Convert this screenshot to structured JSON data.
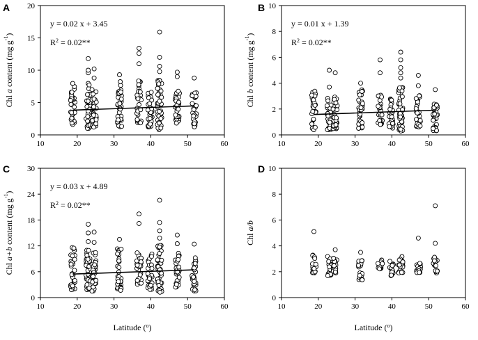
{
  "figure": {
    "x_axis_title": "Latitude (",
    "x_axis_degree": "o",
    "x_axis_close": ")"
  },
  "chart_data": [
    {
      "panel": "A",
      "type": "scatter",
      "ylabel_prefix": "Chl ",
      "ylabel_italic": "a",
      "ylabel_suffix": " content (mg g",
      "ylabel_sup": "-1",
      "ylabel_close": ")",
      "xlim": [
        10,
        60
      ],
      "ylim": [
        0,
        20
      ],
      "xticks": [
        10,
        20,
        30,
        40,
        50,
        60
      ],
      "yticks": [
        0,
        5,
        10,
        15,
        20
      ],
      "equation": "y = 0.02 x + 3.45",
      "r2_prefix": "R",
      "r2_sup": "2",
      "r2_suffix": " = 0.02**",
      "trend": {
        "slope": 0.02,
        "intercept": 3.45
      },
      "columns": [
        {
          "x": 18.8,
          "n": 34,
          "min": 1.2,
          "max": 8.2,
          "outliers": []
        },
        {
          "x": 23.0,
          "n": 44,
          "min": 1.0,
          "max": 8.0,
          "outliers": [
            9.6,
            10.0,
            11.8
          ]
        },
        {
          "x": 24.6,
          "n": 36,
          "min": 1.1,
          "max": 7.2,
          "outliers": [
            8.8,
            10.2
          ]
        },
        {
          "x": 31.5,
          "n": 38,
          "min": 1.2,
          "max": 8.5,
          "outliers": [
            9.3
          ]
        },
        {
          "x": 36.8,
          "n": 28,
          "min": 1.8,
          "max": 8.4,
          "outliers": [
            11.0,
            12.6,
            13.4
          ]
        },
        {
          "x": 39.8,
          "n": 34,
          "min": 1.2,
          "max": 7.2,
          "outliers": []
        },
        {
          "x": 42.4,
          "n": 48,
          "min": 0.8,
          "max": 8.8,
          "outliers": [
            9.8,
            10.6,
            12.0,
            15.9
          ]
        },
        {
          "x": 47.2,
          "n": 30,
          "min": 1.8,
          "max": 7.2,
          "outliers": [
            9.0,
            9.7
          ]
        },
        {
          "x": 51.8,
          "n": 30,
          "min": 1.0,
          "max": 6.6,
          "outliers": [
            8.8
          ]
        }
      ]
    },
    {
      "panel": "B",
      "type": "scatter",
      "ylabel_prefix": "Chl ",
      "ylabel_italic": "b",
      "ylabel_suffix": " content (mg g",
      "ylabel_sup": "-1",
      "ylabel_close": ")",
      "xlim": [
        10,
        60
      ],
      "ylim": [
        0,
        10
      ],
      "xticks": [
        10,
        20,
        30,
        40,
        50,
        60
      ],
      "yticks": [
        0,
        2,
        4,
        6,
        8,
        10
      ],
      "equation": "y = 0.01 x + 1.39",
      "r2_prefix": "R",
      "r2_sup": "2",
      "r2_suffix": " = 0.02**",
      "trend": {
        "slope": 0.01,
        "intercept": 1.39
      },
      "columns": [
        {
          "x": 18.8,
          "n": 32,
          "min": 0.4,
          "max": 3.5,
          "outliers": []
        },
        {
          "x": 23.0,
          "n": 40,
          "min": 0.4,
          "max": 3.2,
          "outliers": [
            3.7,
            5.0
          ]
        },
        {
          "x": 24.6,
          "n": 34,
          "min": 0.4,
          "max": 3.0,
          "outliers": [
            4.8
          ]
        },
        {
          "x": 31.5,
          "n": 36,
          "min": 0.5,
          "max": 3.5,
          "outliers": [
            4.0
          ]
        },
        {
          "x": 36.8,
          "n": 26,
          "min": 0.8,
          "max": 3.2,
          "outliers": [
            4.8,
            5.8
          ]
        },
        {
          "x": 39.8,
          "n": 32,
          "min": 0.5,
          "max": 3.0,
          "outliers": []
        },
        {
          "x": 42.4,
          "n": 46,
          "min": 0.3,
          "max": 3.8,
          "outliers": [
            4.4,
            4.8,
            5.2,
            5.8,
            6.4
          ]
        },
        {
          "x": 47.2,
          "n": 30,
          "min": 0.6,
          "max": 3.2,
          "outliers": [
            3.8,
            4.6
          ]
        },
        {
          "x": 51.8,
          "n": 30,
          "min": 0.3,
          "max": 2.6,
          "outliers": [
            3.5
          ]
        }
      ]
    },
    {
      "panel": "C",
      "type": "scatter",
      "ylabel_prefix": "Chl ",
      "ylabel_italic": "a+b",
      "ylabel_suffix": " content (mg g",
      "ylabel_sup": "-1",
      "ylabel_close": ")",
      "xlim": [
        10,
        60
      ],
      "ylim": [
        0,
        30
      ],
      "xticks": [
        10,
        20,
        30,
        40,
        50,
        60
      ],
      "yticks": [
        0,
        6,
        12,
        18,
        24,
        30
      ],
      "equation": "y = 0.03 x + 4.89",
      "r2_prefix": "R",
      "r2_sup": "2",
      "r2_suffix": " = 0.02**",
      "trend": {
        "slope": 0.03,
        "intercept": 4.89
      },
      "columns": [
        {
          "x": 18.8,
          "n": 34,
          "min": 1.8,
          "max": 11.8,
          "outliers": []
        },
        {
          "x": 23.0,
          "n": 44,
          "min": 1.5,
          "max": 11.0,
          "outliers": [
            13.0,
            15.0,
            17.0
          ]
        },
        {
          "x": 24.6,
          "n": 36,
          "min": 1.5,
          "max": 10.5,
          "outliers": [
            12.8,
            15.2
          ]
        },
        {
          "x": 31.5,
          "n": 38,
          "min": 1.5,
          "max": 11.5,
          "outliers": [
            13.5
          ]
        },
        {
          "x": 36.8,
          "n": 28,
          "min": 2.5,
          "max": 11.0,
          "outliers": [
            17.2,
            19.4
          ]
        },
        {
          "x": 39.8,
          "n": 34,
          "min": 1.8,
          "max": 10.5,
          "outliers": []
        },
        {
          "x": 42.4,
          "n": 48,
          "min": 1.2,
          "max": 12.5,
          "outliers": [
            13.8,
            15.5,
            17.4,
            22.6
          ]
        },
        {
          "x": 47.2,
          "n": 30,
          "min": 2.4,
          "max": 10.5,
          "outliers": [
            12.5,
            14.5
          ]
        },
        {
          "x": 51.8,
          "n": 30,
          "min": 1.5,
          "max": 9.5,
          "outliers": [
            12.4
          ]
        }
      ]
    },
    {
      "panel": "D",
      "type": "scatter",
      "ylabel_prefix": "Chl ",
      "ylabel_italic": "a/b",
      "ylabel_suffix": "",
      "ylabel_sup": "",
      "ylabel_close": "",
      "xlim": [
        10,
        60
      ],
      "ylim": [
        0,
        10
      ],
      "xticks": [
        10,
        20,
        30,
        40,
        50,
        60
      ],
      "yticks": [
        0,
        2,
        4,
        6,
        8,
        10
      ],
      "equation": "",
      "r2_prefix": "",
      "r2_sup": "",
      "r2_suffix": "",
      "trend": null,
      "columns": [
        {
          "x": 18.8,
          "n": 18,
          "min": 1.9,
          "max": 3.3,
          "outliers": [
            5.1
          ]
        },
        {
          "x": 23.0,
          "n": 20,
          "min": 1.7,
          "max": 3.2,
          "outliers": []
        },
        {
          "x": 24.6,
          "n": 18,
          "min": 1.9,
          "max": 3.2,
          "outliers": [
            3.7
          ]
        },
        {
          "x": 31.5,
          "n": 20,
          "min": 1.3,
          "max": 2.9,
          "outliers": [
            3.5
          ]
        },
        {
          "x": 36.8,
          "n": 16,
          "min": 2.2,
          "max": 3.2,
          "outliers": []
        },
        {
          "x": 39.8,
          "n": 16,
          "min": 1.7,
          "max": 2.9,
          "outliers": []
        },
        {
          "x": 42.4,
          "n": 22,
          "min": 1.9,
          "max": 3.2,
          "outliers": []
        },
        {
          "x": 47.2,
          "n": 16,
          "min": 1.9,
          "max": 2.7,
          "outliers": [
            4.6
          ]
        },
        {
          "x": 51.8,
          "n": 18,
          "min": 1.9,
          "max": 3.2,
          "outliers": [
            4.2,
            7.1
          ]
        }
      ]
    }
  ]
}
